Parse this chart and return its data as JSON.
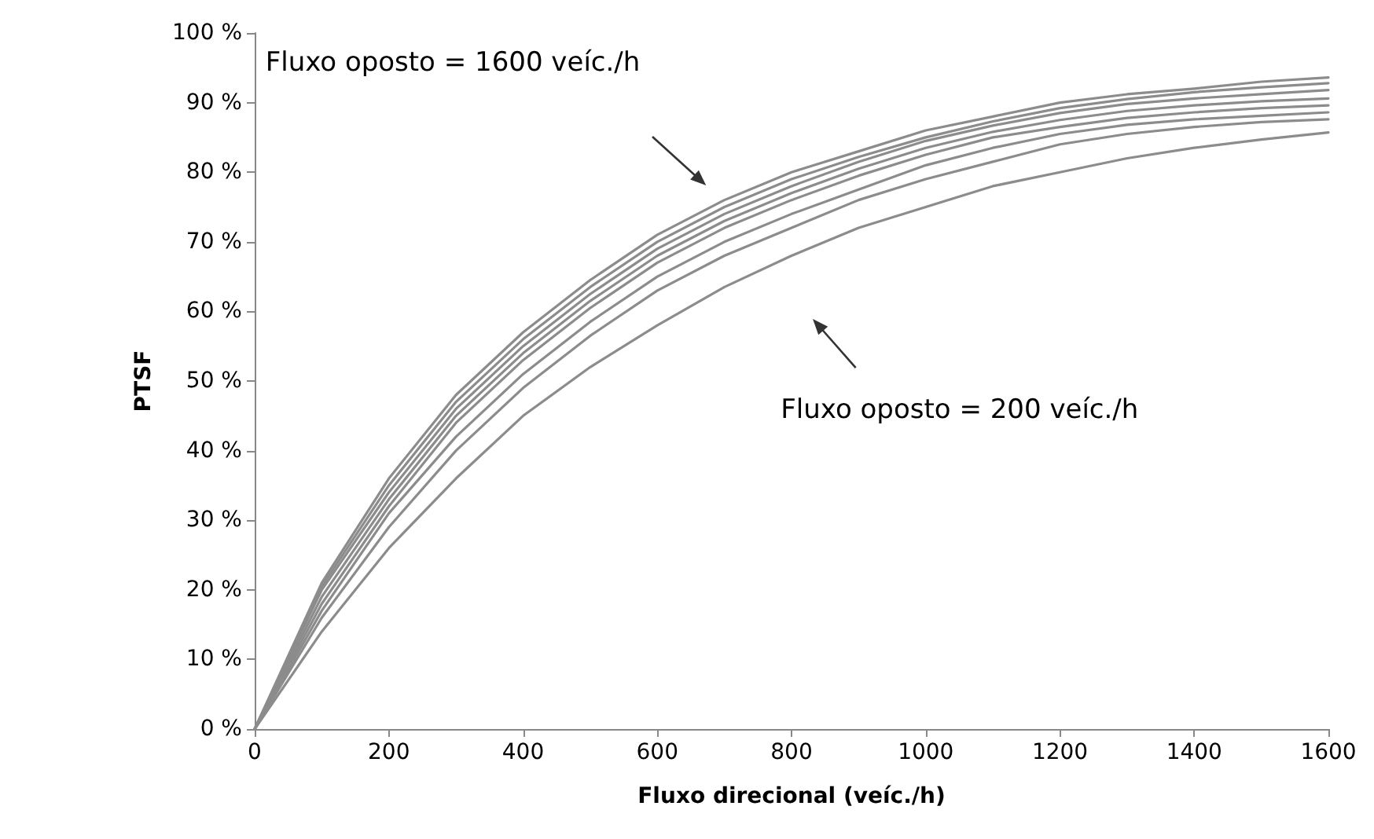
{
  "chart_data": {
    "type": "line",
    "xlabel": "Fluxo direcional (veíc./h)",
    "ylabel": "PTSF",
    "x": [
      0,
      100,
      200,
      300,
      400,
      500,
      600,
      700,
      800,
      900,
      1000,
      1100,
      1200,
      1300,
      1400,
      1500,
      1600
    ],
    "series": [
      {
        "color": "#8c8c8c",
        "values": [
          0,
          14,
          26,
          36,
          45,
          52,
          58,
          63.5,
          68,
          72,
          75,
          78,
          80,
          82,
          83.5,
          84.7,
          85.7
        ]
      },
      {
        "color": "#8c8c8c",
        "values": [
          0,
          16,
          29,
          40,
          49,
          56.5,
          63,
          68,
          72,
          76,
          79,
          81.5,
          84,
          85.5,
          86.5,
          87.2,
          87.6
        ]
      },
      {
        "color": "#8c8c8c",
        "values": [
          0,
          17,
          31,
          42,
          51,
          58.5,
          65,
          70,
          74,
          77.5,
          81,
          83.5,
          85.5,
          86.8,
          87.6,
          88.1,
          88.6
        ]
      },
      {
        "color": "#8c8c8c",
        "values": [
          0,
          18,
          32,
          44,
          53,
          60.5,
          67,
          72,
          76,
          79.5,
          82.5,
          85,
          86.5,
          87.8,
          88.6,
          89.2,
          89.6
        ]
      },
      {
        "color": "#8c8c8c",
        "values": [
          0,
          19,
          33,
          45,
          54,
          61.5,
          68,
          73,
          77,
          80.5,
          83.5,
          85.8,
          87.5,
          88.8,
          89.6,
          90.2,
          90.6
        ]
      },
      {
        "color": "#8c8c8c",
        "values": [
          0,
          20,
          34,
          46,
          55,
          62.5,
          69,
          74,
          78,
          81.5,
          84.5,
          86.7,
          88.5,
          89.8,
          90.6,
          91.2,
          91.8
        ]
      },
      {
        "color": "#8c8c8c",
        "values": [
          0,
          20.5,
          35,
          47,
          56,
          63.5,
          70,
          75,
          79,
          82.2,
          85,
          87.3,
          89.2,
          90.5,
          91.5,
          92.2,
          92.8
        ]
      },
      {
        "color": "#8c8c8c",
        "values": [
          0,
          21,
          36,
          48,
          57,
          64.5,
          71,
          76,
          80,
          83,
          86,
          88,
          90,
          91.2,
          92,
          93,
          93.6
        ]
      }
    ],
    "xlim": [
      0,
      1600
    ],
    "xticks": [
      0,
      200,
      400,
      600,
      800,
      1000,
      1200,
      1400,
      1600
    ],
    "ylim": [
      0,
      100
    ],
    "yticks": [
      {
        "value": 0,
        "label": "0 %"
      },
      {
        "value": 10,
        "label": "10 %"
      },
      {
        "value": 20,
        "label": "20 %"
      },
      {
        "value": 30,
        "label": "30 %"
      },
      {
        "value": 40,
        "label": "40 %"
      },
      {
        "value": 50,
        "label": "50 %"
      },
      {
        "value": 60,
        "label": "60 %"
      },
      {
        "value": 70,
        "label": "70 %"
      },
      {
        "value": 80,
        "label": "80 %"
      },
      {
        "value": 90,
        "label": "90 %"
      },
      {
        "value": 100,
        "label": "100 %"
      }
    ],
    "annotations": [
      "Fluxo oposto = 1600 veíc./h",
      "Fluxo oposto = 200 veíc./h"
    ],
    "grid": false,
    "marker": "none",
    "line_style": "solid"
  }
}
